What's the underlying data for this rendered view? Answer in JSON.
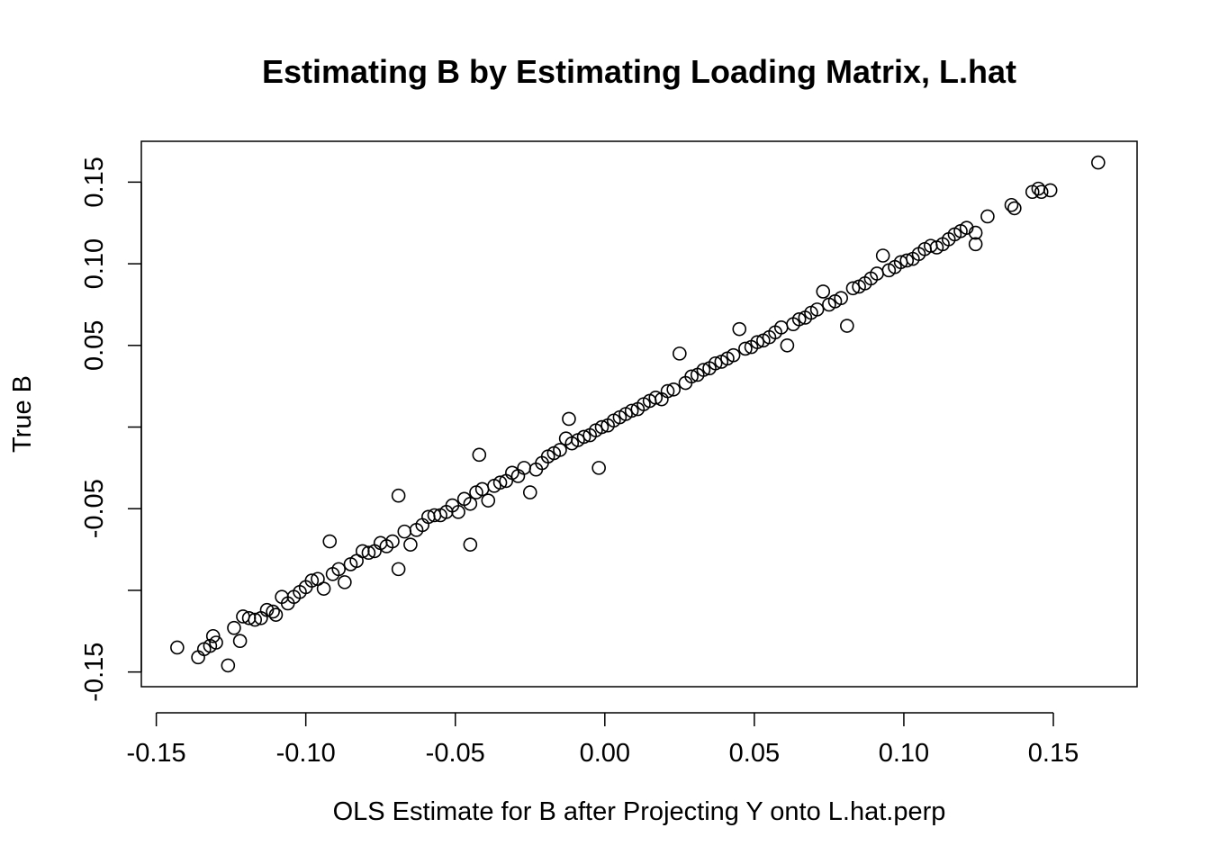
{
  "chart_data": {
    "type": "scatter",
    "title": "Estimating B by Estimating Loading Matrix, L.hat",
    "xlabel": "OLS Estimate for B after Projecting Y onto L.hat.perp",
    "ylabel": "True B",
    "xlim": [
      -0.155,
      0.178
    ],
    "ylim": [
      -0.159,
      0.175
    ],
    "x_ticks": [
      -0.15,
      -0.1,
      -0.05,
      0.0,
      0.05,
      0.1,
      0.15
    ],
    "x_tick_labels": [
      "-0.15",
      "-0.10",
      "-0.05",
      "0.00",
      "0.05",
      "0.10",
      "0.15"
    ],
    "y_ticks": [
      -0.15,
      -0.1,
      -0.05,
      0.0,
      0.05,
      0.1,
      0.15
    ],
    "y_tick_labels": [
      "-0.15",
      "",
      "-0.05",
      "",
      "0.05",
      "0.10",
      "0.15"
    ],
    "grid": false,
    "legend": "none",
    "marker": "open-circle",
    "series": [
      {
        "points": [
          [
            -0.143,
            -0.135
          ],
          [
            -0.136,
            -0.141
          ],
          [
            -0.134,
            -0.136
          ],
          [
            -0.132,
            -0.134
          ],
          [
            -0.131,
            -0.128
          ],
          [
            -0.13,
            -0.132
          ],
          [
            -0.126,
            -0.146
          ],
          [
            -0.124,
            -0.123
          ],
          [
            -0.122,
            -0.131
          ],
          [
            -0.121,
            -0.116
          ],
          [
            -0.119,
            -0.117
          ],
          [
            -0.117,
            -0.118
          ],
          [
            -0.115,
            -0.117
          ],
          [
            -0.113,
            -0.112
          ],
          [
            -0.111,
            -0.113
          ],
          [
            -0.11,
            -0.115
          ],
          [
            -0.108,
            -0.104
          ],
          [
            -0.106,
            -0.108
          ],
          [
            -0.104,
            -0.104
          ],
          [
            -0.102,
            -0.101
          ],
          [
            -0.1,
            -0.098
          ],
          [
            -0.098,
            -0.094
          ],
          [
            -0.096,
            -0.093
          ],
          [
            -0.094,
            -0.099
          ],
          [
            -0.092,
            -0.07
          ],
          [
            -0.091,
            -0.09
          ],
          [
            -0.089,
            -0.087
          ],
          [
            -0.087,
            -0.095
          ],
          [
            -0.085,
            -0.084
          ],
          [
            -0.083,
            -0.082
          ],
          [
            -0.081,
            -0.076
          ],
          [
            -0.079,
            -0.077
          ],
          [
            -0.077,
            -0.076
          ],
          [
            -0.075,
            -0.071
          ],
          [
            -0.073,
            -0.073
          ],
          [
            -0.071,
            -0.07
          ],
          [
            -0.069,
            -0.087
          ],
          [
            -0.069,
            -0.042
          ],
          [
            -0.067,
            -0.064
          ],
          [
            -0.065,
            -0.072
          ],
          [
            -0.063,
            -0.063
          ],
          [
            -0.061,
            -0.06
          ],
          [
            -0.059,
            -0.055
          ],
          [
            -0.057,
            -0.054
          ],
          [
            -0.055,
            -0.054
          ],
          [
            -0.053,
            -0.052
          ],
          [
            -0.051,
            -0.048
          ],
          [
            -0.049,
            -0.052
          ],
          [
            -0.047,
            -0.044
          ],
          [
            -0.045,
            -0.072
          ],
          [
            -0.045,
            -0.047
          ],
          [
            -0.043,
            -0.04
          ],
          [
            -0.042,
            -0.017
          ],
          [
            -0.041,
            -0.038
          ],
          [
            -0.039,
            -0.045
          ],
          [
            -0.037,
            -0.036
          ],
          [
            -0.035,
            -0.034
          ],
          [
            -0.033,
            -0.033
          ],
          [
            -0.031,
            -0.028
          ],
          [
            -0.029,
            -0.03
          ],
          [
            -0.027,
            -0.025
          ],
          [
            -0.025,
            -0.04
          ],
          [
            -0.023,
            -0.026
          ],
          [
            -0.021,
            -0.022
          ],
          [
            -0.019,
            -0.018
          ],
          [
            -0.017,
            -0.016
          ],
          [
            -0.015,
            -0.014
          ],
          [
            -0.013,
            -0.007
          ],
          [
            -0.012,
            0.005
          ],
          [
            -0.011,
            -0.01
          ],
          [
            -0.009,
            -0.008
          ],
          [
            -0.007,
            -0.006
          ],
          [
            -0.005,
            -0.005
          ],
          [
            -0.003,
            -0.002
          ],
          [
            -0.001,
            0.0
          ],
          [
            0.001,
            0.001
          ],
          [
            0.003,
            0.004
          ],
          [
            -0.002,
            -0.025
          ],
          [
            0.005,
            0.006
          ],
          [
            0.007,
            0.008
          ],
          [
            0.009,
            0.01
          ],
          [
            0.011,
            0.011
          ],
          [
            0.013,
            0.014
          ],
          [
            0.015,
            0.016
          ],
          [
            0.017,
            0.018
          ],
          [
            0.019,
            0.017
          ],
          [
            0.021,
            0.022
          ],
          [
            0.023,
            0.023
          ],
          [
            0.025,
            0.045
          ],
          [
            0.027,
            0.027
          ],
          [
            0.029,
            0.031
          ],
          [
            0.031,
            0.032
          ],
          [
            0.033,
            0.035
          ],
          [
            0.035,
            0.036
          ],
          [
            0.037,
            0.039
          ],
          [
            0.039,
            0.04
          ],
          [
            0.041,
            0.042
          ],
          [
            0.043,
            0.044
          ],
          [
            0.045,
            0.06
          ],
          [
            0.047,
            0.048
          ],
          [
            0.049,
            0.049
          ],
          [
            0.051,
            0.052
          ],
          [
            0.053,
            0.053
          ],
          [
            0.055,
            0.055
          ],
          [
            0.057,
            0.058
          ],
          [
            0.059,
            0.061
          ],
          [
            0.061,
            0.05
          ],
          [
            0.063,
            0.063
          ],
          [
            0.065,
            0.066
          ],
          [
            0.067,
            0.067
          ],
          [
            0.069,
            0.07
          ],
          [
            0.071,
            0.072
          ],
          [
            0.073,
            0.083
          ],
          [
            0.075,
            0.075
          ],
          [
            0.077,
            0.077
          ],
          [
            0.079,
            0.079
          ],
          [
            0.081,
            0.062
          ],
          [
            0.083,
            0.085
          ],
          [
            0.085,
            0.086
          ],
          [
            0.087,
            0.088
          ],
          [
            0.089,
            0.091
          ],
          [
            0.091,
            0.094
          ],
          [
            0.093,
            0.105
          ],
          [
            0.095,
            0.096
          ],
          [
            0.097,
            0.098
          ],
          [
            0.099,
            0.101
          ],
          [
            0.101,
            0.102
          ],
          [
            0.103,
            0.103
          ],
          [
            0.105,
            0.106
          ],
          [
            0.107,
            0.109
          ],
          [
            0.109,
            0.111
          ],
          [
            0.111,
            0.11
          ],
          [
            0.113,
            0.112
          ],
          [
            0.115,
            0.115
          ],
          [
            0.117,
            0.118
          ],
          [
            0.119,
            0.12
          ],
          [
            0.121,
            0.122
          ],
          [
            0.124,
            0.112
          ],
          [
            0.124,
            0.119
          ],
          [
            0.128,
            0.129
          ],
          [
            0.136,
            0.136
          ],
          [
            0.137,
            0.134
          ],
          [
            0.143,
            0.144
          ],
          [
            0.145,
            0.146
          ],
          [
            0.146,
            0.144
          ],
          [
            0.149,
            0.145
          ],
          [
            0.165,
            0.162
          ]
        ]
      }
    ]
  }
}
